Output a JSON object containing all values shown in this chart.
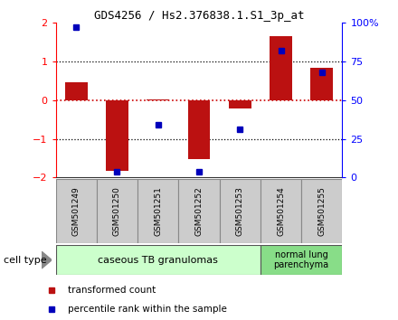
{
  "title": "GDS4256 / Hs2.376838.1.S1_3p_at",
  "samples": [
    "GSM501249",
    "GSM501250",
    "GSM501251",
    "GSM501252",
    "GSM501253",
    "GSM501254",
    "GSM501255"
  ],
  "transformed_counts": [
    0.45,
    -1.82,
    0.02,
    -1.52,
    -0.22,
    1.65,
    0.82
  ],
  "percentile_ranks": [
    0.97,
    0.04,
    0.34,
    0.04,
    0.31,
    0.82,
    0.68
  ],
  "ylim": [
    -2,
    2
  ],
  "yticks_left": [
    -2,
    -1,
    0,
    1,
    2
  ],
  "bar_color": "#bb1111",
  "dot_color": "#0000bb",
  "bg_color": "#ffffff",
  "plot_bg": "#ffffff",
  "zero_line_color": "#cc0000",
  "group1_label": "caseous TB granulomas",
  "group1_color": "#ccffcc",
  "group2_label": "normal lung\nparenchyma",
  "group2_color": "#88dd88",
  "cell_type_label": "cell type",
  "legend_red_label": "transformed count",
  "legend_blue_label": "percentile rank within the sample",
  "bar_width": 0.55,
  "sample_box_color": "#cccccc",
  "sample_box_edge": "#888888",
  "title_fontsize": 9,
  "axis_label_fontsize": 8,
  "sample_fontsize": 6.5,
  "group_fontsize": 8
}
